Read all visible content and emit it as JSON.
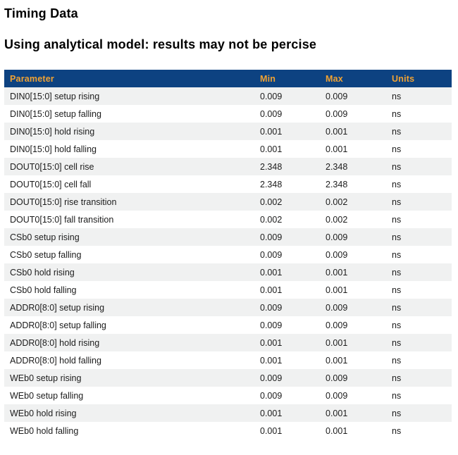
{
  "page": {
    "title": "Timing Data",
    "subtitle": "Using analytical model: results may not be percise"
  },
  "colors": {
    "header_bg": "#0d4281",
    "header_text": "#f0a233",
    "row_stripe": "#f0f1f1",
    "row_alt": "#ffffff",
    "body_text": "#1c1c1c",
    "title_text": "#000000"
  },
  "table": {
    "columns": [
      "Parameter",
      "Min",
      "Max",
      "Units"
    ],
    "rows": [
      {
        "parameter": "DIN0[15:0] setup rising",
        "min": "0.009",
        "max": "0.009",
        "units": "ns"
      },
      {
        "parameter": "DIN0[15:0] setup falling",
        "min": "0.009",
        "max": "0.009",
        "units": "ns"
      },
      {
        "parameter": "DIN0[15:0] hold rising",
        "min": "0.001",
        "max": "0.001",
        "units": "ns"
      },
      {
        "parameter": "DIN0[15:0] hold falling",
        "min": "0.001",
        "max": "0.001",
        "units": "ns"
      },
      {
        "parameter": "DOUT0[15:0] cell rise",
        "min": "2.348",
        "max": "2.348",
        "units": "ns"
      },
      {
        "parameter": "DOUT0[15:0] cell fall",
        "min": "2.348",
        "max": "2.348",
        "units": "ns"
      },
      {
        "parameter": "DOUT0[15:0] rise transition",
        "min": "0.002",
        "max": "0.002",
        "units": "ns"
      },
      {
        "parameter": "DOUT0[15:0] fall transition",
        "min": "0.002",
        "max": "0.002",
        "units": "ns"
      },
      {
        "parameter": "CSb0 setup rising",
        "min": "0.009",
        "max": "0.009",
        "units": "ns"
      },
      {
        "parameter": "CSb0 setup falling",
        "min": "0.009",
        "max": "0.009",
        "units": "ns"
      },
      {
        "parameter": "CSb0 hold rising",
        "min": "0.001",
        "max": "0.001",
        "units": "ns"
      },
      {
        "parameter": "CSb0 hold falling",
        "min": "0.001",
        "max": "0.001",
        "units": "ns"
      },
      {
        "parameter": "ADDR0[8:0] setup rising",
        "min": "0.009",
        "max": "0.009",
        "units": "ns"
      },
      {
        "parameter": "ADDR0[8:0] setup falling",
        "min": "0.009",
        "max": "0.009",
        "units": "ns"
      },
      {
        "parameter": "ADDR0[8:0] hold rising",
        "min": "0.001",
        "max": "0.001",
        "units": "ns"
      },
      {
        "parameter": "ADDR0[8:0] hold falling",
        "min": "0.001",
        "max": "0.001",
        "units": "ns"
      },
      {
        "parameter": "WEb0 setup rising",
        "min": "0.009",
        "max": "0.009",
        "units": "ns"
      },
      {
        "parameter": "WEb0 setup falling",
        "min": "0.009",
        "max": "0.009",
        "units": "ns"
      },
      {
        "parameter": "WEb0 hold rising",
        "min": "0.001",
        "max": "0.001",
        "units": "ns"
      },
      {
        "parameter": "WEb0 hold falling",
        "min": "0.001",
        "max": "0.001",
        "units": "ns"
      }
    ]
  }
}
